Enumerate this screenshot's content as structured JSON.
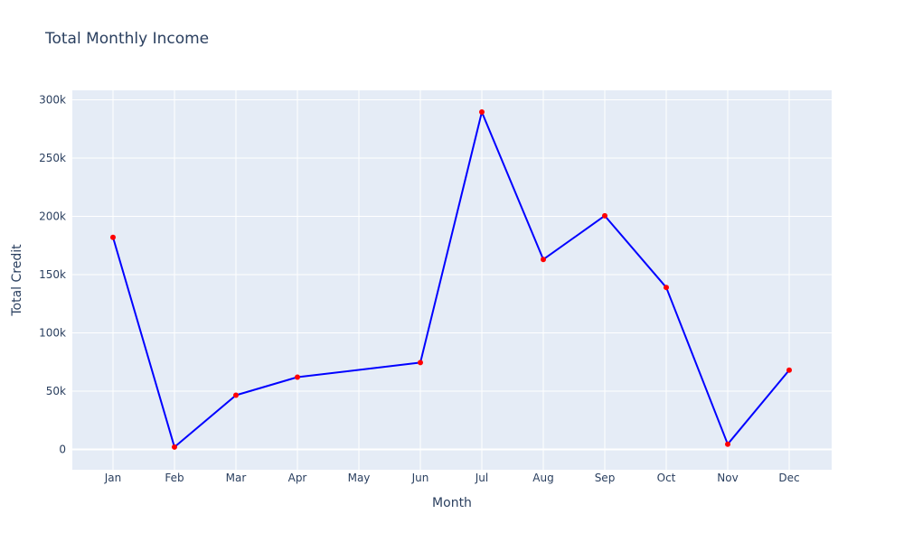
{
  "chart_data": {
    "type": "line",
    "title": "Total Monthly Income",
    "xlabel": "Month",
    "ylabel": "Total Credit",
    "categories": [
      "Jan",
      "Feb",
      "Mar",
      "Apr",
      "May",
      "Jun",
      "Jul",
      "Aug",
      "Sep",
      "Oct",
      "Nov",
      "Dec"
    ],
    "x": [
      "Jan",
      "Feb",
      "Mar",
      "Apr",
      "Jun",
      "Jul",
      "Aug",
      "Sep",
      "Oct",
      "Nov",
      "Dec"
    ],
    "values": [
      182000,
      2000,
      46500,
      62000,
      74500,
      289500,
      163000,
      200500,
      139000,
      4500,
      68000
    ],
    "ylim": [
      -16500,
      300000
    ],
    "yticks": [
      0,
      50000,
      100000,
      150000,
      200000,
      250000,
      300000
    ],
    "ytick_labels": [
      "0",
      "50k",
      "100k",
      "150k",
      "200k",
      "250k",
      "300k"
    ],
    "grid": true,
    "colors": {
      "line": "#0000ff",
      "marker": "#ff0000",
      "plot_bg": "#e5ecf6",
      "grid": "#ffffff"
    }
  }
}
